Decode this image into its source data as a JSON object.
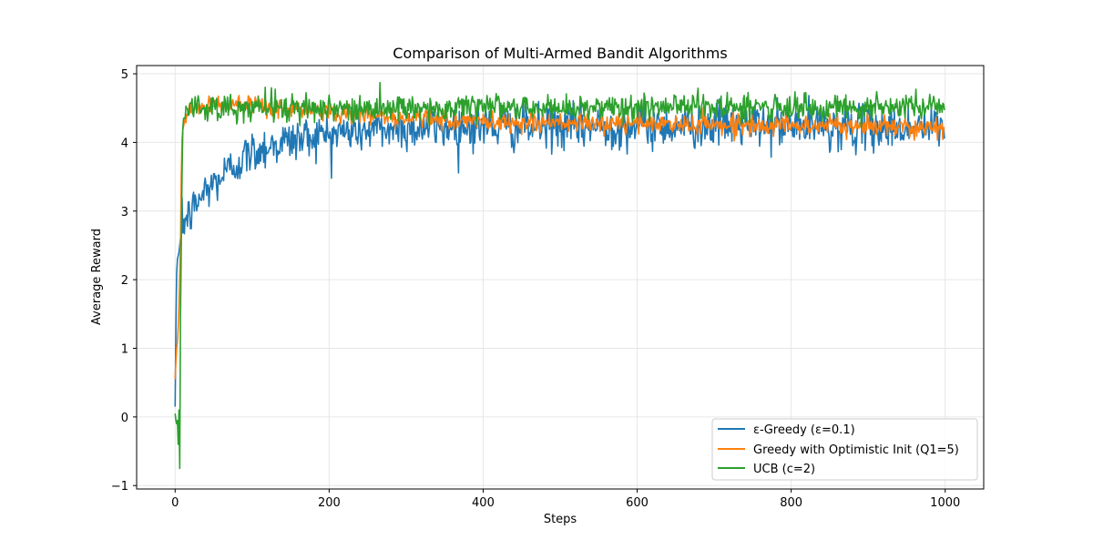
{
  "chart_data": {
    "type": "line",
    "title": "Comparison of Multi-Armed Bandit Algorithms",
    "xlabel": "Steps",
    "ylabel": "Average Reward",
    "xlim": [
      -50,
      1050
    ],
    "ylim": [
      -1.05,
      5.12
    ],
    "xticks": [
      0,
      200,
      400,
      600,
      800,
      1000
    ],
    "yticks": [
      -1,
      0,
      1,
      2,
      3,
      4,
      5
    ],
    "xtick_labels": [
      "0",
      "200",
      "400",
      "600",
      "800",
      "1000"
    ],
    "ytick_labels": [
      "−1",
      "0",
      "1",
      "2",
      "3",
      "4",
      "5"
    ],
    "grid": true,
    "legend_position": "lower-right",
    "n_steps": 1000,
    "series": [
      {
        "name": "ε-Greedy (ε=0.1)",
        "color": "#1f77b4",
        "x": [
          0,
          1,
          2,
          3,
          4,
          5,
          6,
          7,
          8,
          10,
          12,
          15,
          20,
          25,
          30,
          40,
          50,
          60,
          70,
          80,
          90,
          100,
          120,
          140,
          160,
          180,
          200,
          220,
          240,
          260,
          280,
          300,
          325,
          350,
          375,
          400,
          450,
          500,
          550,
          600,
          650,
          700,
          750,
          800,
          850,
          900,
          950,
          1000
        ],
        "values": [
          0.15,
          1.3,
          2.1,
          2.3,
          2.35,
          2.4,
          2.5,
          2.6,
          2.7,
          2.8,
          2.85,
          2.9,
          2.95,
          3.05,
          3.15,
          3.3,
          3.4,
          3.5,
          3.6,
          3.7,
          3.78,
          3.85,
          3.95,
          4.0,
          4.05,
          4.1,
          4.12,
          4.15,
          4.17,
          4.18,
          4.2,
          4.21,
          4.22,
          4.22,
          4.23,
          4.23,
          4.22,
          4.23,
          4.22,
          4.24,
          4.24,
          4.26,
          4.25,
          4.24,
          4.23,
          4.22,
          4.21,
          4.22
        ],
        "noise": 0.16
      },
      {
        "name": "Greedy with Optimistic Init (Q1=5)",
        "color": "#ff7f0e",
        "x": [
          0,
          1,
          2,
          3,
          4,
          5,
          6,
          7,
          8,
          9,
          10,
          12,
          15,
          20,
          30,
          50,
          75,
          100,
          150,
          200,
          250,
          300,
          350,
          400,
          500,
          600,
          700,
          800,
          900,
          1000
        ],
        "values": [
          0.55,
          0.8,
          1.0,
          1.1,
          1.3,
          1.6,
          2.1,
          2.5,
          3.5,
          4.0,
          4.2,
          4.3,
          4.4,
          4.5,
          4.52,
          4.55,
          4.55,
          4.52,
          4.48,
          4.45,
          4.4,
          4.36,
          4.33,
          4.3,
          4.28,
          4.27,
          4.26,
          4.25,
          4.24,
          4.23
        ],
        "noise": 0.07
      },
      {
        "name": "UCB (c=2)",
        "color": "#2ca02c",
        "x": [
          0,
          1,
          2,
          3,
          4,
          5,
          6,
          7,
          8,
          9,
          10,
          12,
          15,
          20,
          30,
          50,
          100,
          200,
          300,
          400,
          500,
          600,
          700,
          800,
          900,
          1000
        ],
        "values": [
          0.05,
          -0.05,
          -0.1,
          -0.05,
          -0.4,
          0.1,
          -0.75,
          1.5,
          2.5,
          3.5,
          4.2,
          4.4,
          4.5,
          4.5,
          4.5,
          4.5,
          4.5,
          4.5,
          4.5,
          4.5,
          4.5,
          4.52,
          4.52,
          4.52,
          4.52,
          4.5
        ],
        "noise": 0.1
      }
    ]
  }
}
